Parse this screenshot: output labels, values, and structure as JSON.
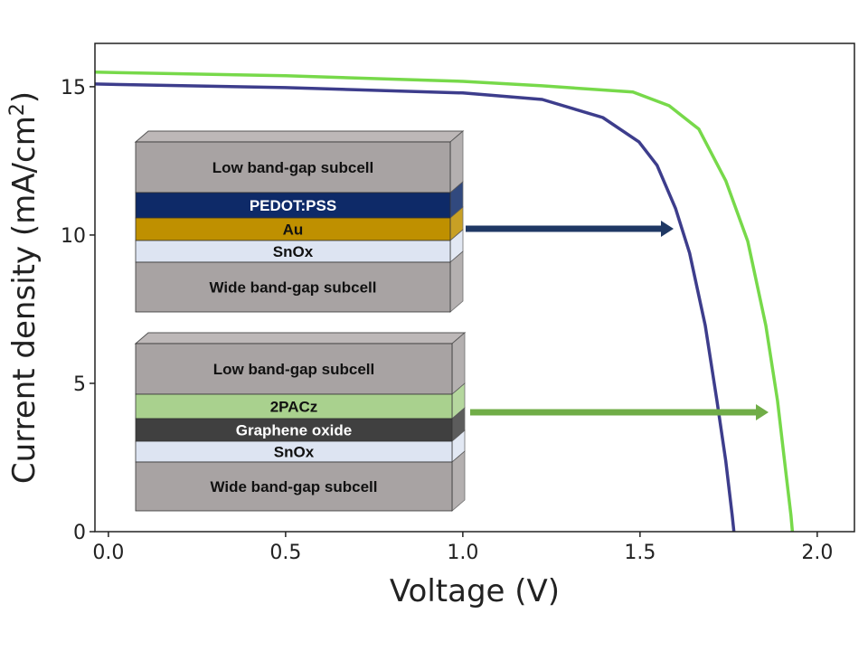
{
  "chart_data": {
    "type": "line",
    "title": "",
    "xlabel": "Voltage (V)",
    "ylabel": "Current density (mA/cm",
    "ylabel_sup": "2",
    "ylabel_end": ")",
    "xlim": [
      -0.038,
      2.105
    ],
    "ylim": [
      0,
      16.46
    ],
    "xticks": [
      0.0,
      0.5,
      1.0,
      1.5,
      2.0
    ],
    "xtick_labels": [
      "0.0",
      "0.5",
      "1.0",
      "1.5",
      "2.0"
    ],
    "yticks": [
      0,
      5,
      10,
      15
    ],
    "ytick_labels": [
      "0",
      "5",
      "10",
      "15"
    ],
    "grid": false,
    "series": [
      {
        "name": "PEDOT:PSS/Au/SnOx",
        "color": "#3d3d8c",
        "x": [
          -0.038,
          0.5,
          1.0,
          1.224,
          1.395,
          1.497,
          1.548,
          1.6,
          1.64,
          1.684,
          1.717,
          1.742,
          1.76,
          1.765
        ],
        "y": [
          15.09,
          14.97,
          14.79,
          14.57,
          13.96,
          13.14,
          12.35,
          10.9,
          9.39,
          6.95,
          4.42,
          2.38,
          0.55,
          0
        ]
      },
      {
        "name": "2PACz/Graphene oxide/SnOx",
        "color": "#77d94a",
        "x": [
          -0.038,
          0.5,
          1.0,
          1.224,
          1.48,
          1.582,
          1.666,
          1.742,
          1.804,
          1.855,
          1.888,
          1.913,
          1.926,
          1.93
        ],
        "y": [
          15.49,
          15.37,
          15.18,
          15.03,
          14.82,
          14.36,
          13.57,
          11.83,
          9.79,
          6.95,
          4.42,
          1.86,
          0.55,
          0
        ]
      }
    ],
    "annotations": [
      {
        "name": "stack-1",
        "arrow_to": "PEDOT:PSS/Au/SnOx",
        "arrow_color": "#1f3864",
        "layers": [
          {
            "label": "Low band-gap subcell",
            "fill": "#a8a3a3",
            "text": "#111111"
          },
          {
            "label": "PEDOT:PSS",
            "fill": "#0e2a68",
            "text": "#ffffff"
          },
          {
            "label": "Au",
            "fill": "#bf9000",
            "text": "#111111"
          },
          {
            "label": "SnOx",
            "fill": "#dde4f2",
            "text": "#111111"
          },
          {
            "label": "Wide band-gap subcell",
            "fill": "#a8a3a3",
            "text": "#111111"
          }
        ]
      },
      {
        "name": "stack-2",
        "arrow_to": "2PACz/Graphene oxide/SnOx",
        "arrow_color": "#70ad47",
        "layers": [
          {
            "label": "Low band-gap subcell",
            "fill": "#a8a3a3",
            "text": "#111111"
          },
          {
            "label": "2PACz",
            "fill": "#a9d18e",
            "text": "#111111"
          },
          {
            "label": "Graphene oxide",
            "fill": "#404040",
            "text": "#ffffff"
          },
          {
            "label": "SnOx",
            "fill": "#dde4f2",
            "text": "#111111"
          },
          {
            "label": "Wide band-gap subcell",
            "fill": "#a8a3a3",
            "text": "#111111"
          }
        ]
      }
    ]
  }
}
